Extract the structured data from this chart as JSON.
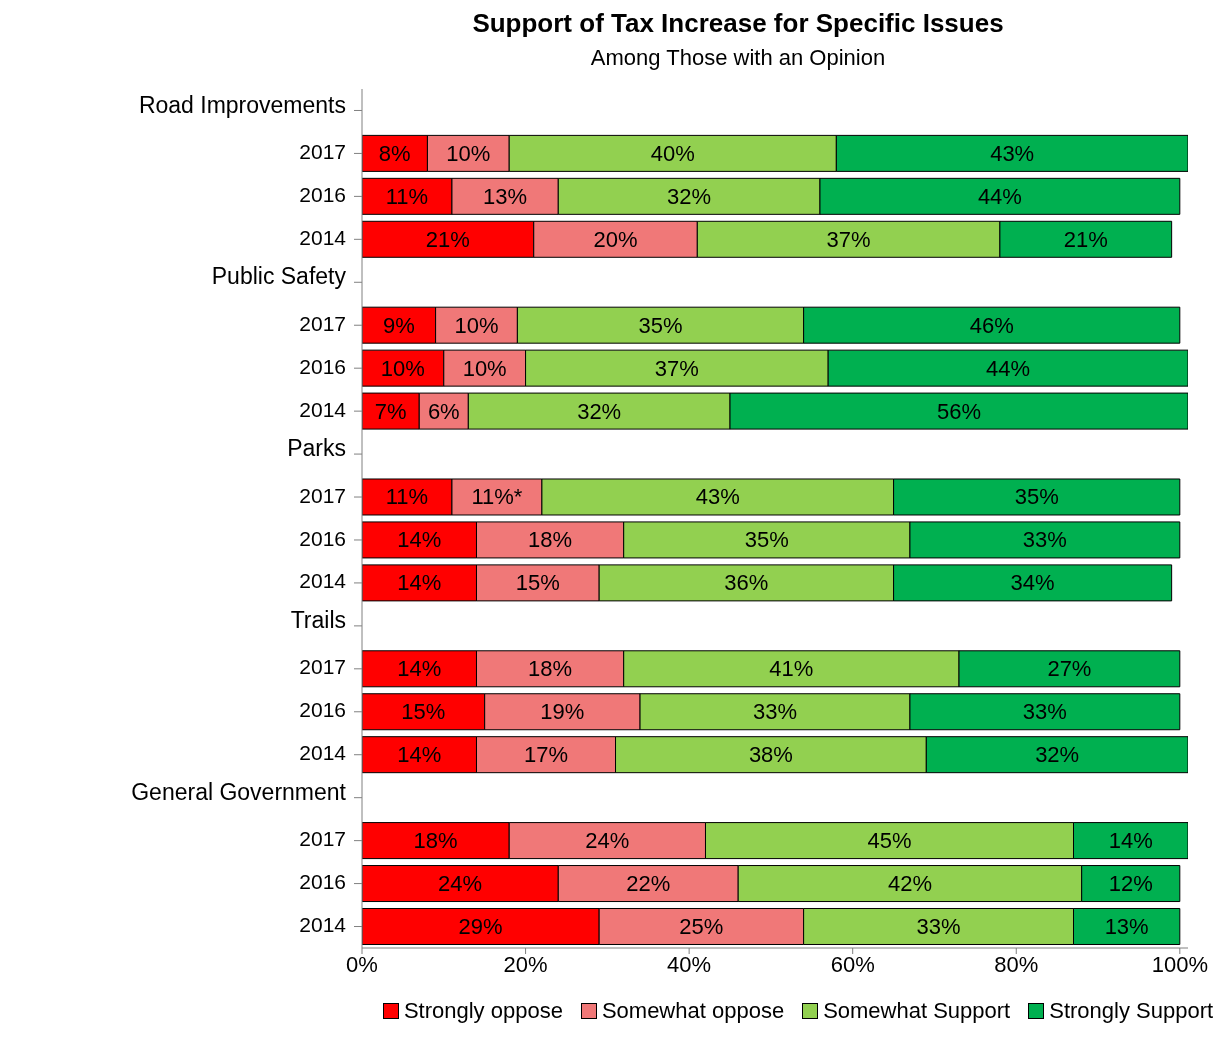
{
  "chart_data": {
    "type": "bar",
    "orientation": "horizontal",
    "stacked": true,
    "title": "Support of Tax Increase for Specific Issues",
    "subtitle": "Among Those with an Opinion",
    "categories": [
      "Road Improvements",
      "2017",
      "2016",
      "2014",
      "Public Safety",
      "2017",
      "2016",
      "2014",
      "Parks",
      "2017",
      "2016",
      "2014",
      "Trails",
      "2017",
      "2016",
      "2014",
      "General Government",
      "2017",
      "2016",
      "2014"
    ],
    "series": [
      {
        "name": "Strongly oppose",
        "color": "#ff0000",
        "values": [
          null,
          8,
          11,
          21,
          null,
          9,
          10,
          7,
          null,
          11,
          14,
          14,
          null,
          14,
          15,
          14,
          null,
          18,
          24,
          29
        ],
        "value_labels": [
          null,
          "8%",
          "11%",
          "21%",
          null,
          "9%",
          "10%",
          "7%",
          null,
          "11%",
          "14%",
          "14%",
          null,
          "14%",
          "15%",
          "14%",
          null,
          "18%",
          "24%",
          "29%"
        ]
      },
      {
        "name": "Somewhat oppose",
        "color": "#f07878",
        "values": [
          null,
          10,
          13,
          20,
          null,
          10,
          10,
          6,
          null,
          11,
          18,
          15,
          null,
          18,
          19,
          17,
          null,
          24,
          22,
          25
        ],
        "value_labels": [
          null,
          "10%",
          "13%",
          "20%",
          null,
          "10%",
          "10%",
          "6%",
          null,
          "11%*",
          "18%",
          "15%",
          null,
          "18%",
          "19%",
          "17%",
          null,
          "24%",
          "22%",
          "25%"
        ]
      },
      {
        "name": "Somewhat Support",
        "color": "#92d050",
        "values": [
          null,
          40,
          32,
          37,
          null,
          35,
          37,
          32,
          null,
          43,
          35,
          36,
          null,
          41,
          33,
          38,
          null,
          45,
          42,
          33
        ],
        "value_labels": [
          null,
          "40%",
          "32%",
          "37%",
          null,
          "35%",
          "37%",
          "32%",
          null,
          "43%",
          "35%",
          "36%",
          null,
          "41%",
          "33%",
          "38%",
          null,
          "45%",
          "42%",
          "33%"
        ]
      },
      {
        "name": "Strongly Support",
        "color": "#00b050",
        "values": [
          null,
          43,
          44,
          21,
          null,
          46,
          44,
          56,
          null,
          35,
          33,
          34,
          null,
          27,
          33,
          32,
          null,
          14,
          12,
          13
        ],
        "value_labels": [
          null,
          "43%",
          "44%",
          "21%",
          null,
          "46%",
          "44%",
          "56%",
          null,
          "35%",
          "33%",
          "34%",
          null,
          "27%",
          "33%",
          "32%",
          null,
          "14%",
          "12%",
          "13%"
        ]
      }
    ],
    "xlim": [
      0,
      101
    ],
    "xticks": [
      {
        "value": 0,
        "label": "0%"
      },
      {
        "value": 20,
        "label": "20%"
      },
      {
        "value": 40,
        "label": "40%"
      },
      {
        "value": 60,
        "label": "60%"
      },
      {
        "value": 80,
        "label": "80%"
      },
      {
        "value": 100,
        "label": "100%"
      }
    ],
    "grid": false,
    "legend": "bottom"
  }
}
